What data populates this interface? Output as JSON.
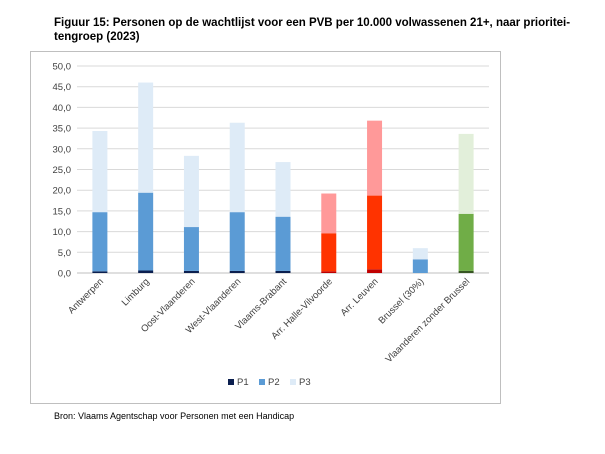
{
  "title": "Figuur 15: Personen op de wachtlijst voor een PVB per 10.000 volwassenen 21+, naar prioritei-tengroep (2023)",
  "source": "Bron: Vlaams Agentschap voor Personen met een Handicap",
  "chart_data": {
    "type": "bar",
    "stacked": true,
    "title": "",
    "xlabel": "",
    "ylabel": "",
    "ylim": [
      0,
      50
    ],
    "yticks": [
      "0,0",
      "5,0",
      "10,0",
      "15,0",
      "20,0",
      "25,0",
      "30,0",
      "35,0",
      "40,0",
      "45,0",
      "50,0"
    ],
    "grid": true,
    "legend_position": "bottom",
    "categories": [
      "Antwerpen",
      "Limburg",
      "Oost-Vlaanderen",
      "West-Vlaanderen",
      "Vlaams-Brabant",
      "Arr. Halle-Vilvoorde",
      "Arr. Leuven",
      "Brussel (30%)",
      "Vlaanderen zonder Brussel"
    ],
    "series": [
      {
        "name": "P1",
        "values": [
          0.4,
          0.6,
          0.5,
          0.5,
          0.5,
          0.4,
          0.9,
          0.0,
          0.5
        ]
      },
      {
        "name": "P2",
        "values": [
          14.3,
          18.8,
          10.6,
          14.2,
          13.1,
          9.2,
          17.8,
          3.3,
          13.8
        ]
      },
      {
        "name": "P3",
        "values": [
          19.6,
          26.6,
          17.2,
          21.6,
          13.2,
          9.6,
          18.1,
          2.7,
          19.3
        ]
      }
    ],
    "legend_colors": [
      "#0b1f4f",
      "#5b9bd5",
      "#deebf7"
    ],
    "bar_colors": [
      [
        "#0b1f4f",
        "#5b9bd5",
        "#deebf7"
      ],
      [
        "#0b1f4f",
        "#5b9bd5",
        "#deebf7"
      ],
      [
        "#0b1f4f",
        "#5b9bd5",
        "#deebf7"
      ],
      [
        "#0b1f4f",
        "#5b9bd5",
        "#deebf7"
      ],
      [
        "#0b1f4f",
        "#5b9bd5",
        "#deebf7"
      ],
      [
        "#c00000",
        "#ff3300",
        "#ff9999"
      ],
      [
        "#c00000",
        "#ff3300",
        "#ff9999"
      ],
      [
        "#0b1f4f",
        "#5b9bd5",
        "#deebf7"
      ],
      [
        "#375623",
        "#70ad47",
        "#e2efda"
      ]
    ]
  }
}
